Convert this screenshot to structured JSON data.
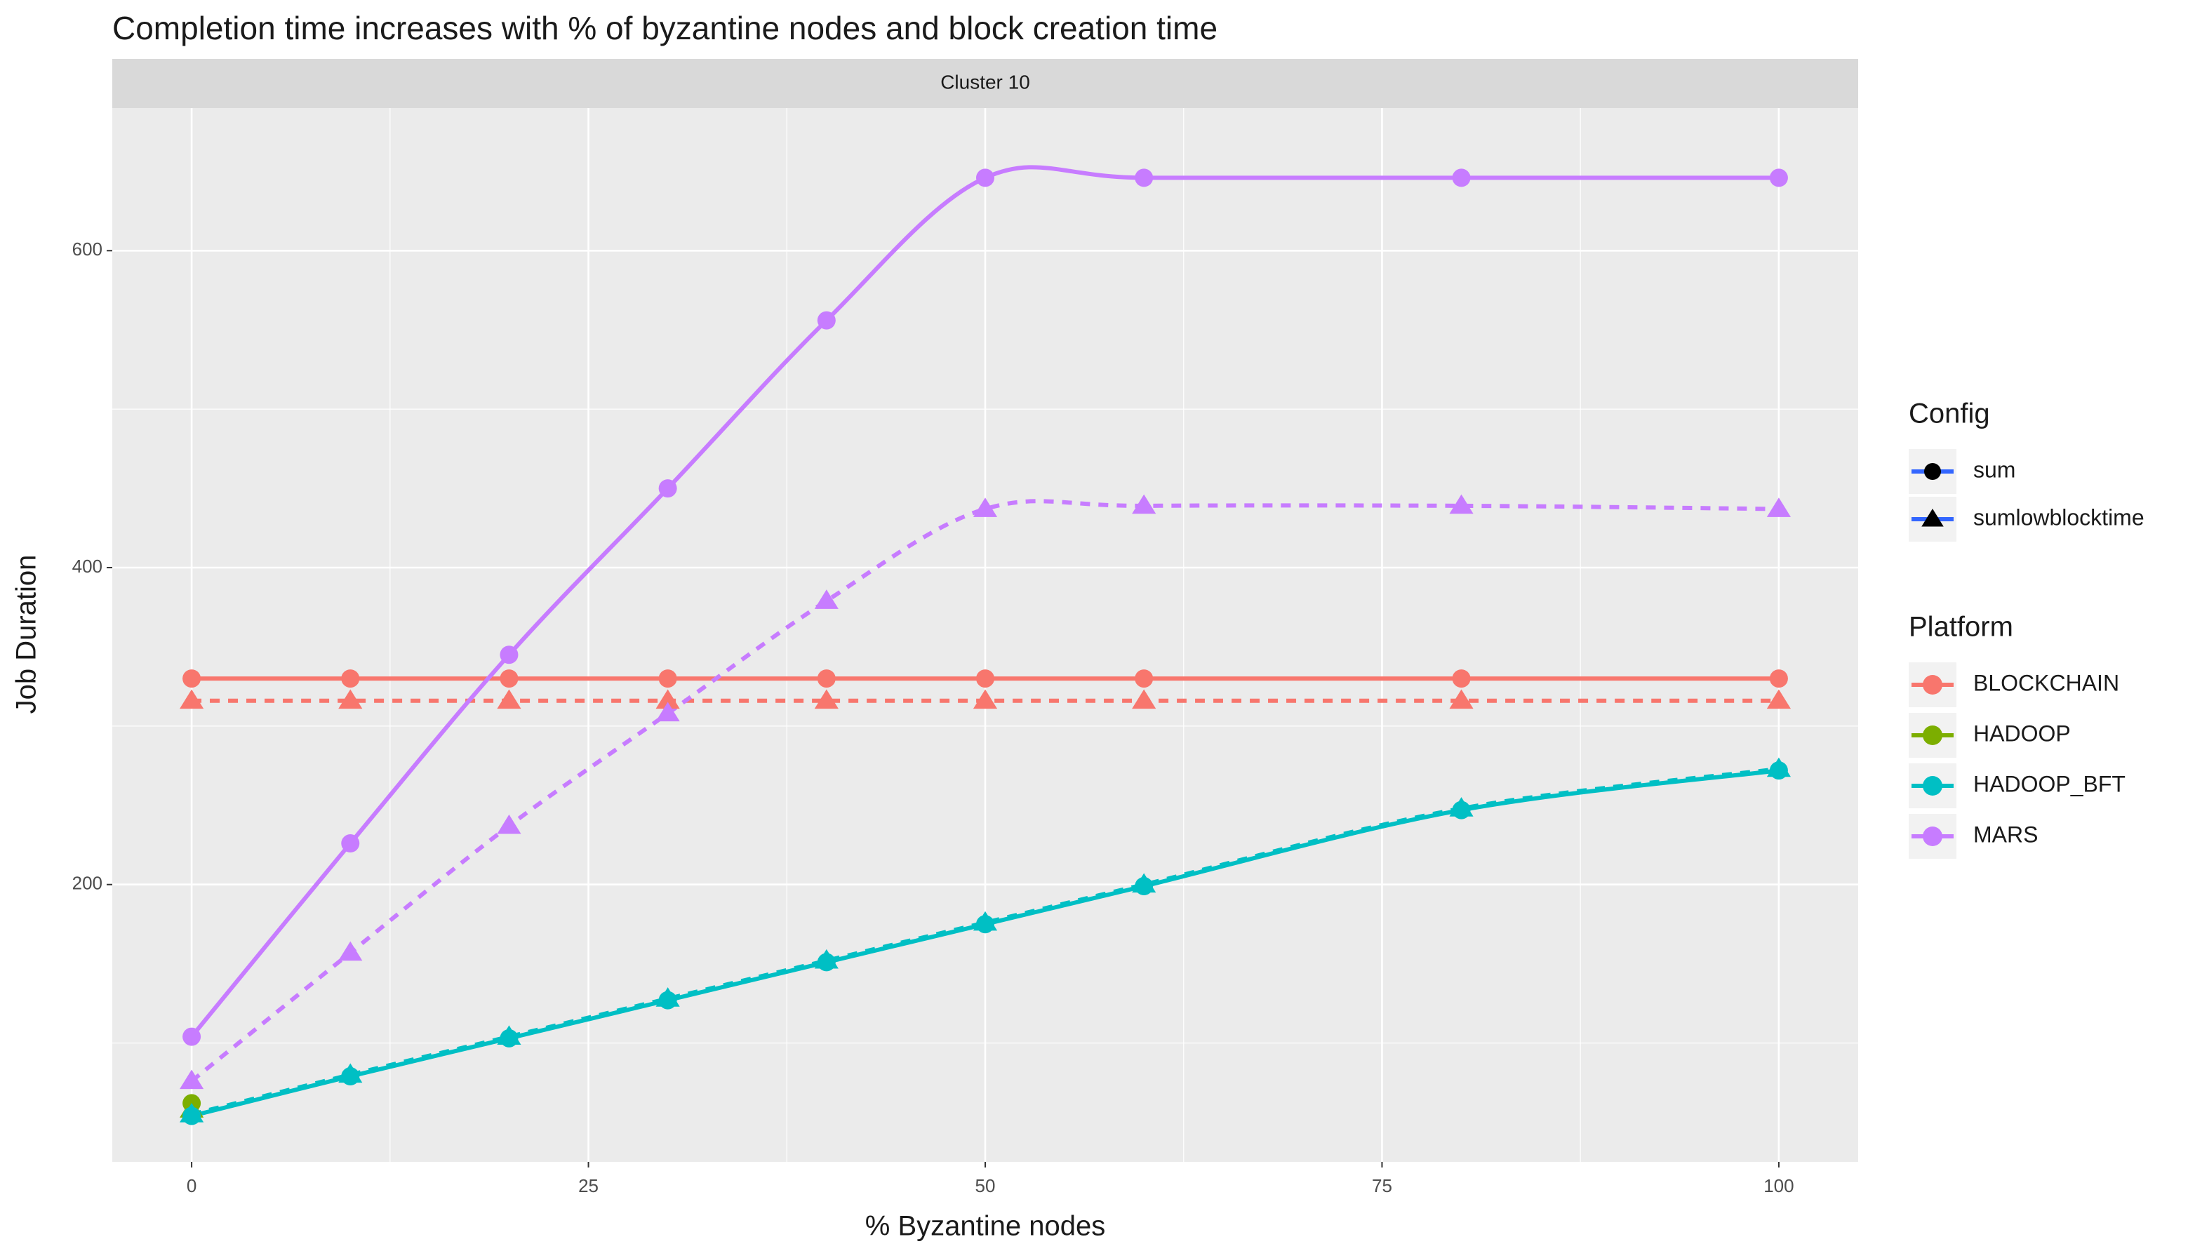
{
  "chart_data": {
    "type": "line",
    "title": "Completion time increases with % of byzantine nodes and block creation time",
    "facet": "Cluster 10",
    "x_label": "% Byzantine nodes",
    "y_label": "Job Duration",
    "xlim": [
      -5,
      105
    ],
    "ylim": [
      25,
      690
    ],
    "xticks": [
      0,
      25,
      50,
      75,
      100
    ],
    "yticks": [
      200,
      400,
      600
    ],
    "grid": true,
    "legend_position": "right",
    "config_title": "Config",
    "configs": [
      {
        "name": "sum",
        "shape": "circle",
        "dash": false
      },
      {
        "name": "sumlowblocktime",
        "shape": "triangle",
        "dash": true
      }
    ],
    "platform_title": "Platform",
    "platforms": [
      {
        "name": "BLOCKCHAIN",
        "color": "#f8766d"
      },
      {
        "name": "HADOOP",
        "color": "#7cae00"
      },
      {
        "name": "HADOOP_BFT",
        "color": "#00bfc4"
      },
      {
        "name": "MARS",
        "color": "#c77cff"
      }
    ],
    "series": [
      {
        "platform": "BLOCKCHAIN",
        "config": "sum",
        "x": [
          0,
          10,
          20,
          30,
          40,
          50,
          60,
          80,
          100
        ],
        "values": [
          330,
          330,
          330,
          330,
          330,
          330,
          330,
          330,
          330
        ]
      },
      {
        "platform": "BLOCKCHAIN",
        "config": "sumlowblocktime",
        "x": [
          0,
          10,
          20,
          30,
          40,
          50,
          60,
          80,
          100
        ],
        "values": [
          316,
          316,
          316,
          316,
          316,
          316,
          316,
          316,
          316
        ]
      },
      {
        "platform": "HADOOP",
        "config": "sum",
        "x": [
          0
        ],
        "values": [
          62
        ]
      },
      {
        "platform": "HADOOP",
        "config": "sumlowblocktime",
        "x": [
          0
        ],
        "values": [
          58
        ]
      },
      {
        "platform": "HADOOP_BFT",
        "config": "sum",
        "x": [
          0,
          10,
          20,
          30,
          40,
          50,
          60,
          80,
          100
        ],
        "values": [
          54,
          79,
          103,
          127,
          151,
          175,
          199,
          247,
          272
        ]
      },
      {
        "platform": "HADOOP_BFT",
        "config": "sumlowblocktime",
        "x": [
          0,
          10,
          20,
          30,
          40,
          50,
          60,
          80,
          100
        ],
        "values": [
          55,
          80,
          104,
          128,
          152,
          176,
          200,
          248,
          273
        ]
      },
      {
        "platform": "MARS",
        "config": "sum",
        "x": [
          0,
          10,
          20,
          30,
          40,
          50,
          60,
          80,
          100
        ],
        "values": [
          104,
          226,
          345,
          450,
          556,
          646,
          646,
          646,
          646
        ]
      },
      {
        "platform": "MARS",
        "config": "sumlowblocktime",
        "x": [
          0,
          10,
          20,
          30,
          40,
          50,
          60,
          80,
          100
        ],
        "values": [
          76,
          157,
          237,
          308,
          379,
          437,
          439,
          439,
          437
        ]
      }
    ]
  }
}
